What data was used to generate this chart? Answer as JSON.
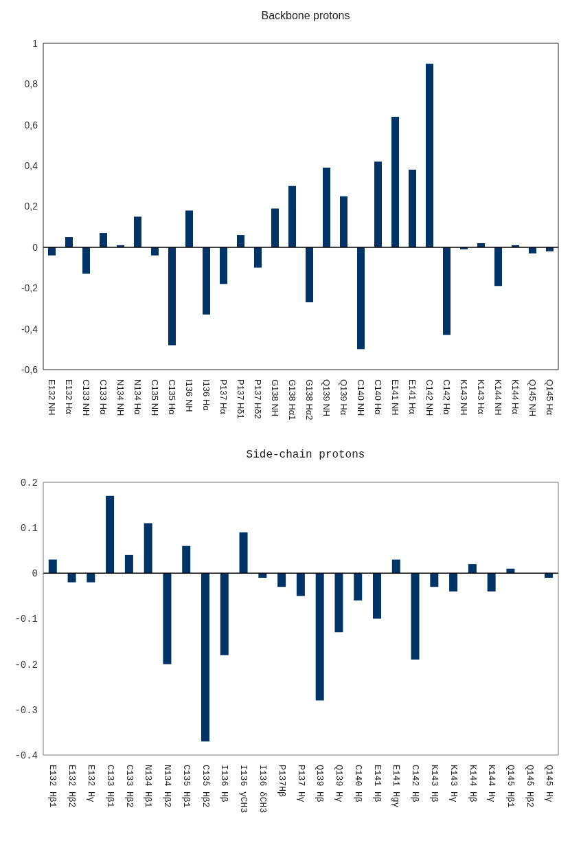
{
  "chart_data": [
    {
      "type": "bar",
      "title": "Backbone protons",
      "categories": [
        "E132 NH",
        "E132 Hα",
        "C133 NH",
        "C133 Hα",
        "N134 NH",
        "N134 Hα",
        "C135 NH",
        "C135 Hα",
        "I136 NH",
        "I136 Hα",
        "P137 Hα",
        "P137 Hδ1",
        "P137 Hδ2",
        "G138 NH",
        "G138 Hα1",
        "G138 Hα2",
        "Q139 NH",
        "Q139 Hα",
        "C140 NH",
        "C140 Hα",
        "E141 NH",
        "E141 Hα",
        "C142 NH",
        "C142 Hα",
        "K143 NH",
        "K143 Hα",
        "K144 NH",
        "K144 Hα",
        "Q145 NH",
        "Q145 Hα"
      ],
      "values": [
        -0.04,
        0.05,
        -0.13,
        0.07,
        0.01,
        0.15,
        -0.04,
        -0.48,
        0.18,
        -0.33,
        -0.18,
        0.06,
        -0.1,
        0.19,
        0.3,
        -0.27,
        0.39,
        0.25,
        -0.5,
        0.42,
        0.64,
        0.38,
        0.9,
        -0.43,
        -0.01,
        0.02,
        -0.19,
        0.01,
        -0.03,
        -0.02
      ],
      "color": "#003366",
      "ylim": [
        -0.6,
        1
      ],
      "yticks": [
        {
          "value": -0.6,
          "label": "-0,6"
        },
        {
          "value": -0.4,
          "label": "-0,4"
        },
        {
          "value": -0.2,
          "label": "-0,2"
        },
        0,
        {
          "value": 0.2,
          "label": "0,2"
        },
        {
          "value": 0.4,
          "label": "0,4"
        },
        {
          "value": 0.6,
          "label": "0,6"
        },
        {
          "value": 0.8,
          "label": "0,8"
        },
        1
      ]
    },
    {
      "type": "bar",
      "title": "Side-chain protons",
      "categories": [
        "E132 Hβ1",
        "E132 Hβ2",
        "E132 Hγ",
        "C133 Hβ1",
        "C133 Hβ2",
        "N134 Hβ1",
        "N134 Hβ2",
        "C135 Hβ1",
        "C135 Hβ2",
        "I136 Hβ",
        "I136 γCH3",
        "I136 δCH3",
        "P137Hβ",
        "P137 Hγ",
        "Q139 Hβ",
        "Q139 Hγ",
        "C140 Hβ",
        "E141 Hβ",
        "E141 Hgγ",
        "C142 Hβ",
        "K143 Hβ",
        "K143 Hγ",
        "K144 Hβ",
        "K144 Hγ",
        "Q145 Hβ1",
        "Q145 Hβ2",
        "Q145 Hγ"
      ],
      "values": [
        0.03,
        -0.02,
        -0.02,
        0.17,
        0.04,
        0.11,
        -0.2,
        0.06,
        -0.37,
        -0.18,
        0.09,
        -0.01,
        -0.03,
        -0.05,
        -0.28,
        -0.13,
        -0.06,
        -0.1,
        0.03,
        -0.19,
        -0.03,
        -0.04,
        0.02,
        -0.04,
        0.01,
        0,
        -0.01
      ],
      "color": "#003366",
      "ylim": [
        -0.4,
        0.2
      ],
      "yticks": [
        -0.4,
        -0.3,
        -0.2,
        -0.1,
        0,
        0.1,
        0.2
      ]
    }
  ]
}
